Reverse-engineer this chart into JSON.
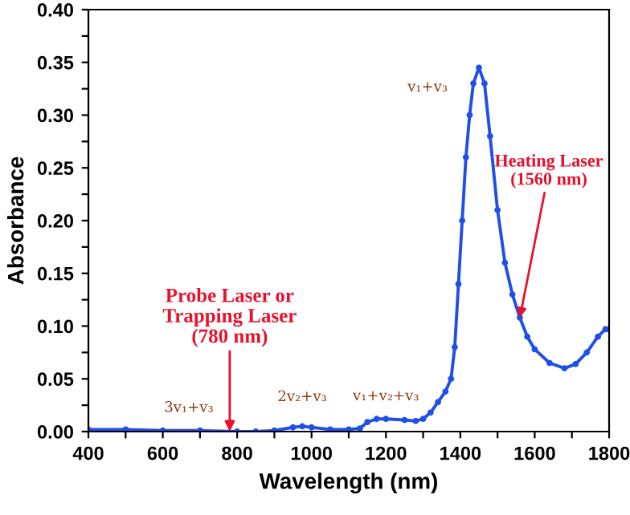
{
  "chart_data": {
    "type": "line",
    "xlabel": "Wavelength (nm)",
    "ylabel": "Absorbance",
    "x": [
      400,
      500,
      600,
      700,
      800,
      850,
      900,
      950,
      975,
      1000,
      1050,
      1100,
      1130,
      1150,
      1175,
      1200,
      1250,
      1280,
      1300,
      1320,
      1340,
      1360,
      1375,
      1385,
      1395,
      1405,
      1415,
      1425,
      1435,
      1450,
      1465,
      1480,
      1500,
      1520,
      1540,
      1560,
      1580,
      1600,
      1640,
      1680,
      1710,
      1740,
      1770,
      1790,
      1800
    ],
    "series": [
      {
        "color": "#1f4fe8",
        "values": [
          0.002,
          0.002,
          0.001,
          0.001,
          0.0,
          0.0,
          0.001,
          0.004,
          0.005,
          0.004,
          0.002,
          0.002,
          0.003,
          0.009,
          0.012,
          0.012,
          0.011,
          0.01,
          0.012,
          0.018,
          0.028,
          0.038,
          0.05,
          0.08,
          0.14,
          0.2,
          0.26,
          0.3,
          0.33,
          0.345,
          0.33,
          0.28,
          0.21,
          0.16,
          0.13,
          0.108,
          0.09,
          0.078,
          0.065,
          0.06,
          0.064,
          0.075,
          0.09,
          0.097,
          0.097
        ]
      }
    ],
    "marker": "circle",
    "line_style": "solid",
    "xlim": [
      400,
      1800
    ],
    "ylim": [
      0.0,
      0.4
    ],
    "xticks": [
      400,
      {
        "value": 500,
        "label": null
      },
      600,
      {
        "value": 700,
        "label": null
      },
      800,
      {
        "value": 900,
        "label": null
      },
      1000,
      {
        "value": 1100,
        "label": null
      },
      1200,
      {
        "value": 1300,
        "label": null
      },
      1400,
      {
        "value": 1500,
        "label": null
      },
      1600,
      {
        "value": 1700,
        "label": null
      },
      1800
    ],
    "yticks": [
      {
        "value": 0.0,
        "label": "0.00"
      },
      {
        "value": 0.025,
        "label": null
      },
      {
        "value": 0.05,
        "label": "0.05"
      },
      {
        "value": 0.075,
        "label": null
      },
      {
        "value": 0.1,
        "label": "0.10"
      },
      {
        "value": 0.125,
        "label": null
      },
      {
        "value": 0.15,
        "label": "0.15"
      },
      {
        "value": 0.175,
        "label": null
      },
      {
        "value": 0.2,
        "label": "0.20"
      },
      {
        "value": 0.225,
        "label": null
      },
      {
        "value": 0.25,
        "label": "0.25"
      },
      {
        "value": 0.275,
        "label": null
      },
      {
        "value": 0.3,
        "label": "0.30"
      },
      {
        "value": 0.325,
        "label": null
      },
      {
        "value": 0.35,
        "label": "0.35"
      },
      {
        "value": 0.375,
        "label": null
      },
      {
        "value": 0.4,
        "label": "0.40"
      }
    ],
    "grid": false,
    "legend": false,
    "annotations": [
      {
        "text": "Probe Laser or\nTrapping Laser\n(780 nm)",
        "x": 780,
        "y": 0.0
      },
      {
        "text": "Heating Laser\n(1560 nm)",
        "x": 1560,
        "y": 0.108
      },
      {
        "text": "3v₁+v₃",
        "x": 700,
        "y": 0.001
      },
      {
        "text": "2v₂+v₃",
        "x": 975,
        "y": 0.005
      },
      {
        "text": "v₁+v₂+v₃",
        "x": 1200,
        "y": 0.012
      },
      {
        "text": "v₁+v₃",
        "x": 1450,
        "y": 0.345
      }
    ]
  }
}
